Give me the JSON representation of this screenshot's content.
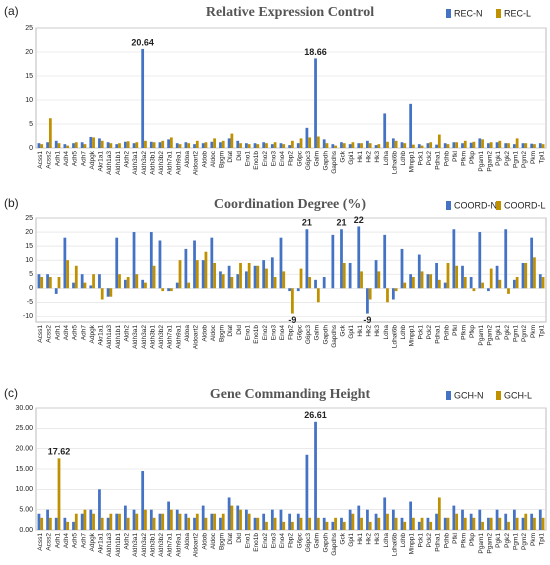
{
  "chart_data": [
    {
      "type": "bar",
      "panel_label": "(a)",
      "title": "Relative Expression Control",
      "categories": [
        "Acss1",
        "Acss2",
        "Adh1",
        "Adh4",
        "Adh5",
        "Adh7",
        "Adpgk",
        "Akr1a1",
        "Aldh1a3",
        "Aldh1b1",
        "Aldh2",
        "Aldh3a1",
        "Aldh3a2",
        "Aldh3b1",
        "Aldh3b2",
        "Aldh7a1",
        "Aldh9a1",
        "Aldoa",
        "Aldoart2",
        "Aldob",
        "Aldoc",
        "Bpgm",
        "Dlat",
        "Dld",
        "Eno1",
        "Eno1b",
        "Eno2",
        "Eno3",
        "Eno4",
        "Fbp2",
        "G6pc",
        "G6pc3",
        "Galm",
        "Gapdh",
        "Gapdhs",
        "Gck",
        "Gpi1",
        "Hk1",
        "Hk2",
        "Hk3",
        "Ldha",
        "Ldhal6b",
        "Ldhb",
        "Minpp1",
        "Pck1",
        "Pck2",
        "Pdha1",
        "Pdhb",
        "Pfkl",
        "Pfkm",
        "Pfkp",
        "Pgam1",
        "Pgam2",
        "Pgk1",
        "Pgk2",
        "Pgm1",
        "Pgm2",
        "Pkm",
        "Tpi1"
      ],
      "series": [
        {
          "name": "REC-N",
          "color": "#4472c4",
          "values": [
            1,
            1.2,
            1.5,
            0.8,
            1,
            1.2,
            2.3,
            2,
            1.2,
            0.8,
            1.3,
            1,
            20.64,
            1.3,
            1.2,
            1.8,
            1,
            1.2,
            0.8,
            1,
            1.3,
            1.2,
            2,
            1.5,
            1,
            1,
            1.2,
            0.8,
            1,
            0.6,
            1,
            4.2,
            18.66,
            1.8,
            0.8,
            1.2,
            0.8,
            1,
            1.5,
            0.6,
            7.2,
            2,
            1.2,
            9.2,
            0.8,
            1,
            0.7,
            1,
            1.2,
            1,
            1.1,
            2,
            1,
            1.2,
            1,
            0.8,
            1,
            0.9,
            1
          ],
          "value_labels": [
            null,
            null,
            null,
            null,
            null,
            null,
            null,
            null,
            null,
            null,
            null,
            null,
            "20.64",
            null,
            null,
            null,
            null,
            null,
            null,
            null,
            null,
            null,
            null,
            null,
            null,
            null,
            null,
            null,
            null,
            null,
            null,
            null,
            "18.66",
            null,
            null,
            null,
            null,
            null,
            null,
            null,
            null,
            null,
            null,
            null,
            null,
            null,
            null,
            null,
            null,
            null,
            null,
            null,
            null,
            null,
            null,
            null,
            null,
            null,
            null
          ]
        },
        {
          "name": "REC-L",
          "color": "#bf9000",
          "values": [
            0.8,
            6.2,
            1,
            0.5,
            1.2,
            0.8,
            2.2,
            1.5,
            1,
            1,
            1.4,
            1.2,
            1.5,
            1.2,
            1.5,
            2.2,
            0.8,
            1,
            1.5,
            1.2,
            2,
            1.5,
            3,
            1,
            0.8,
            0.8,
            1,
            1.2,
            0.8,
            1.5,
            2,
            2.2,
            2.4,
            1,
            0.5,
            1,
            1.2,
            1,
            1,
            0.8,
            1.3,
            1.5,
            1,
            0.7,
            0.5,
            1.2,
            2.8,
            0.8,
            1.2,
            1.5,
            1.3,
            1.8,
            1.2,
            1.5,
            1,
            2,
            1,
            0.8,
            0.8
          ]
        }
      ],
      "ylim": [
        0,
        25
      ],
      "yticks": [
        0,
        5,
        10,
        15,
        20,
        25
      ],
      "grid": true,
      "legend": "top-right"
    },
    {
      "type": "bar",
      "panel_label": "(b)",
      "title": "Coordination Degree (%)",
      "categories": [
        "Acss1",
        "Acss2",
        "Adh1",
        "Adh4",
        "Adh5",
        "Adh7",
        "Adpgk",
        "Akr1a1",
        "Aldh1a3",
        "Aldh1b1",
        "Aldh2",
        "Aldh3a1",
        "Aldh3a2",
        "Aldh3b1",
        "Aldh3b2",
        "Aldh7a1",
        "Aldh9a1",
        "Aldoa",
        "Aldoart2",
        "Aldob",
        "Aldoc",
        "Bpgm",
        "Dlat",
        "Dld",
        "Eno1",
        "Eno1b",
        "Eno2",
        "Eno3",
        "Eno4",
        "Fbp2",
        "G6pc",
        "G6pc3",
        "Galm",
        "Gapdh",
        "Gapdhs",
        "Gck",
        "Gpi1",
        "Hk1",
        "Hk2",
        "Hk3",
        "Ldha",
        "Ldhal6b",
        "Ldhb",
        "Minpp1",
        "Pck1",
        "Pck2",
        "Pdha1",
        "Pdhb",
        "Pfkl",
        "Pfkm",
        "Pfkp",
        "Pgam1",
        "Pgam2",
        "Pgk1",
        "Pgk2",
        "Pgm1",
        "Pgm2",
        "Pkm",
        "Tpi1"
      ],
      "series": [
        {
          "name": "COORD-N",
          "color": "#4472c4",
          "values": [
            5,
            5,
            -2,
            18,
            2,
            5,
            1,
            5,
            -3,
            18,
            3,
            20,
            3,
            20,
            17,
            -1,
            2,
            14,
            17,
            10,
            18,
            6,
            8,
            5,
            6,
            8,
            10,
            11,
            18,
            -1,
            -1,
            21,
            3,
            4,
            19,
            21,
            9,
            22,
            -9,
            10,
            19,
            -4,
            14,
            5,
            12,
            5,
            9,
            2,
            21,
            8,
            4,
            20,
            -1,
            8,
            21,
            3,
            9,
            18,
            5
          ],
          "value_labels": [
            null,
            null,
            null,
            null,
            null,
            null,
            null,
            null,
            null,
            null,
            null,
            null,
            null,
            null,
            null,
            null,
            null,
            null,
            null,
            null,
            null,
            null,
            null,
            null,
            null,
            null,
            null,
            null,
            null,
            null,
            null,
            "21",
            null,
            null,
            null,
            "21",
            null,
            "22",
            "-9",
            null,
            null,
            null,
            null,
            null,
            null,
            null,
            null,
            null,
            null,
            null,
            null,
            null,
            null,
            null,
            null,
            null,
            null,
            null,
            null
          ]
        },
        {
          "name": "COORD-L",
          "color": "#bf9000",
          "values": [
            4,
            4,
            4,
            10,
            8,
            2,
            5,
            -4,
            -3,
            5,
            4,
            5,
            2,
            8,
            -1,
            -1,
            10,
            2,
            10,
            13,
            9,
            5,
            4,
            9,
            9,
            8,
            7,
            4,
            6,
            -9,
            7,
            4,
            -5,
            0,
            0,
            9,
            0,
            6,
            -4,
            6,
            -5,
            -1,
            2,
            4,
            6,
            5,
            3,
            9,
            8,
            4,
            -1,
            2,
            7,
            3,
            -2,
            4,
            9,
            11,
            4
          ],
          "value_labels": [
            null,
            null,
            null,
            null,
            null,
            null,
            null,
            null,
            null,
            null,
            null,
            null,
            null,
            null,
            null,
            null,
            null,
            null,
            null,
            null,
            null,
            null,
            null,
            null,
            null,
            null,
            null,
            null,
            null,
            "-9",
            null,
            null,
            null,
            null,
            null,
            null,
            null,
            null,
            null,
            null,
            null,
            null,
            null,
            null,
            null,
            null,
            null,
            null,
            null,
            null,
            null,
            null,
            null,
            null,
            null,
            null,
            null,
            null,
            null
          ]
        }
      ],
      "ylim": [
        -12,
        25
      ],
      "yticks": [
        -10,
        -5,
        0,
        5,
        10,
        15,
        20,
        25
      ],
      "grid": true,
      "legend": "top-right"
    },
    {
      "type": "bar",
      "panel_label": "(c)",
      "title": "Gene Commanding Height",
      "categories": [
        "Acss1",
        "Acss2",
        "Adh1",
        "Adh4",
        "Adh5",
        "Adh7",
        "Adpgk",
        "Akr1a1",
        "Aldh1a3",
        "Aldh1b1",
        "Aldh2",
        "Aldh3a1",
        "Aldh3a2",
        "Aldh3b1",
        "Aldh3b2",
        "Aldh7a1",
        "Aldh9a1",
        "Aldoa",
        "Aldoart2",
        "Aldob",
        "Aldoc",
        "Bpgm",
        "Dlat",
        "Dld",
        "Eno1",
        "Eno1b",
        "Eno2",
        "Eno3",
        "Eno4",
        "Fbp2",
        "G6pc",
        "G6pc3",
        "Galm",
        "Gapdh",
        "Gapdhs",
        "Gck",
        "Gpi1",
        "Hk1",
        "Hk2",
        "Hk3",
        "Ldha",
        "Ldhal6b",
        "Ldhb",
        "Minpp1",
        "Pck1",
        "Pck2",
        "Pdha1",
        "Pdhb",
        "Pfkl",
        "Pfkm",
        "Pfkp",
        "Pgam1",
        "Pgam2",
        "Pgk1",
        "Pgk2",
        "Pgm1",
        "Pgm2",
        "Pkm",
        "Tpi1"
      ],
      "series": [
        {
          "name": "GCH-N",
          "color": "#4472c4",
          "values": [
            4,
            5,
            3,
            3,
            2,
            4,
            5,
            10,
            3,
            4,
            6,
            5,
            14.5,
            5,
            4,
            7,
            5,
            4,
            3,
            6,
            4,
            3,
            8,
            6,
            5,
            3,
            4,
            5,
            5,
            4,
            4,
            18.5,
            26.61,
            3,
            2,
            3,
            5,
            6,
            5,
            4,
            8,
            5,
            3,
            7,
            2,
            3,
            4,
            3,
            6,
            5,
            4,
            5,
            3,
            5,
            4,
            5,
            3,
            4,
            5
          ],
          "value_labels": [
            null,
            null,
            null,
            null,
            null,
            null,
            null,
            null,
            null,
            null,
            null,
            null,
            null,
            null,
            null,
            null,
            null,
            null,
            null,
            null,
            null,
            null,
            null,
            null,
            null,
            null,
            null,
            null,
            null,
            null,
            null,
            null,
            "26.61",
            null,
            null,
            null,
            null,
            null,
            null,
            null,
            null,
            null,
            null,
            null,
            null,
            null,
            null,
            null,
            null,
            null,
            null,
            null,
            null,
            null,
            null,
            null,
            null,
            null,
            null
          ]
        },
        {
          "name": "GCH-L",
          "color": "#bf9000",
          "values": [
            3,
            3,
            17.62,
            2,
            4,
            5,
            4,
            3,
            4,
            4,
            3,
            4,
            5,
            3,
            4,
            5,
            4,
            3,
            4,
            3,
            4,
            4,
            6,
            5,
            4,
            3,
            2,
            3,
            2,
            2,
            3,
            3,
            3,
            2,
            3,
            2,
            4,
            3,
            2,
            3,
            4,
            3,
            2,
            3,
            3,
            2,
            8,
            3,
            4,
            3,
            3,
            2,
            3,
            3,
            2,
            3,
            4,
            3,
            3
          ],
          "value_labels": [
            null,
            null,
            "17.62",
            null,
            null,
            null,
            null,
            null,
            null,
            null,
            null,
            null,
            null,
            null,
            null,
            null,
            null,
            null,
            null,
            null,
            null,
            null,
            null,
            null,
            null,
            null,
            null,
            null,
            null,
            null,
            null,
            null,
            null,
            null,
            null,
            null,
            null,
            null,
            null,
            null,
            null,
            null,
            null,
            null,
            null,
            null,
            null,
            null,
            null,
            null,
            null,
            null,
            null,
            null,
            null,
            null,
            null,
            null,
            null
          ]
        }
      ],
      "ylim": [
        0,
        30
      ],
      "yticks": [
        {
          "value": 0,
          "label": "0.00"
        },
        {
          "value": 5,
          "label": "5.00"
        },
        {
          "value": 10,
          "label": "10.00"
        },
        {
          "value": 15,
          "label": "15.00"
        },
        {
          "value": 20,
          "label": "20.00"
        },
        {
          "value": 25,
          "label": "25.00"
        },
        {
          "value": 30,
          "label": "30.00"
        }
      ],
      "grid": true,
      "legend": "top-right"
    }
  ]
}
